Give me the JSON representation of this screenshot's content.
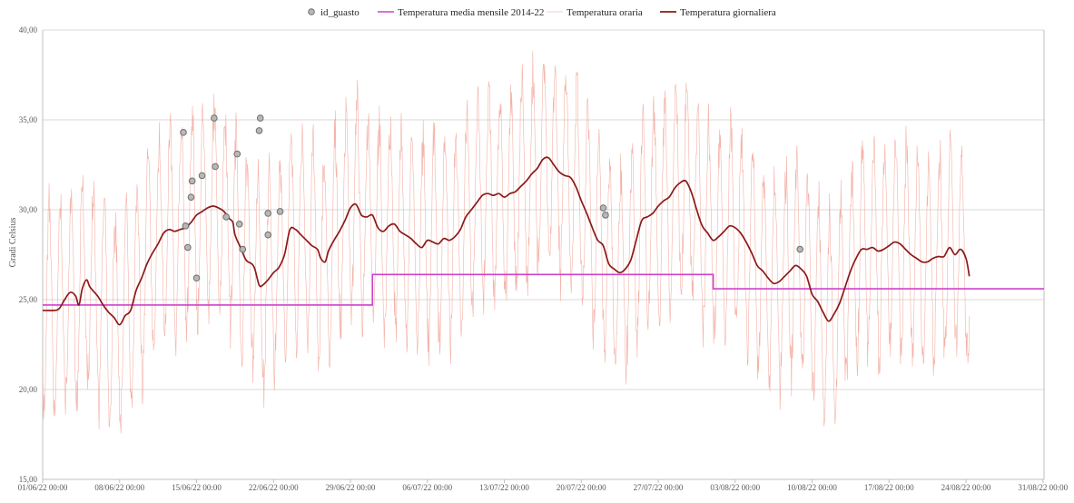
{
  "chart_data": {
    "type": "line",
    "ylabel": "Gradi Celsius",
    "ylim": [
      15,
      40
    ],
    "y_ticks": [
      "15,00",
      "20,00",
      "25,00",
      "30,00",
      "35,00",
      "40,00"
    ],
    "x_ticks": [
      "01/06/22 00:00",
      "08/06/22 00:00",
      "15/06/22 00:00",
      "22/06/22 00:00",
      "29/06/22 00:00",
      "06/07/22 00:00",
      "13/07/22 00:00",
      "20/07/22 00:00",
      "27/07/22 00:00",
      "03/08/22 00:00",
      "10/08/22 00:00",
      "17/08/22 00:00",
      "24/08/22 00:00",
      "31/08/22 00:00"
    ],
    "x_range_days": [
      0,
      91.1
    ],
    "grid": true,
    "legend_position": "top",
    "legend": [
      "id_guasto",
      "Temperatura media mensile 2014-22",
      "Temperatura oraria",
      "Temperatura giornaliera"
    ],
    "colors": {
      "id_guasto_fill": "#b8b8b8",
      "id_guasto_stroke": "#6e6e6e",
      "monthly": "#cc44cc",
      "hourly": "#f2a89c",
      "daily": "#8b1a1a",
      "grid": "#d9d9d9",
      "axis": "#bfbfbf"
    },
    "series": [
      {
        "name": "Temperatura media mensile 2014-22",
        "type": "step",
        "points": [
          [
            0,
            24.7
          ],
          [
            30,
            24.7
          ],
          [
            30,
            26.4
          ],
          [
            61,
            26.4
          ],
          [
            61,
            25.6
          ],
          [
            91.1,
            25.6
          ]
        ]
      },
      {
        "name": "Temperatura giornaliera",
        "type": "line",
        "points": [
          [
            0,
            24.4
          ],
          [
            1,
            24.4
          ],
          [
            1.5,
            24.5
          ],
          [
            2,
            25.0
          ],
          [
            2.5,
            25.4
          ],
          [
            3,
            25.2
          ],
          [
            3.3,
            24.7
          ],
          [
            3.6,
            25.6
          ],
          [
            4,
            26.1
          ],
          [
            4.3,
            25.7
          ],
          [
            5,
            25.2
          ],
          [
            5.5,
            24.7
          ],
          [
            6,
            24.3
          ],
          [
            6.5,
            24.0
          ],
          [
            7,
            23.6
          ],
          [
            7.5,
            24.1
          ],
          [
            8,
            24.4
          ],
          [
            8.5,
            25.5
          ],
          [
            9,
            26.2
          ],
          [
            9.5,
            27.0
          ],
          [
            10,
            27.6
          ],
          [
            10.5,
            28.1
          ],
          [
            11,
            28.7
          ],
          [
            11.5,
            28.9
          ],
          [
            12,
            28.8
          ],
          [
            12.5,
            28.9
          ],
          [
            13,
            29.0
          ],
          [
            13.5,
            29.3
          ],
          [
            14,
            29.7
          ],
          [
            14.5,
            29.9
          ],
          [
            15,
            30.1
          ],
          [
            15.5,
            30.2
          ],
          [
            16,
            30.1
          ],
          [
            16.5,
            29.9
          ],
          [
            17,
            29.5
          ],
          [
            17.3,
            29.3
          ],
          [
            17.5,
            28.6
          ],
          [
            18,
            27.9
          ],
          [
            18.5,
            27.2
          ],
          [
            19,
            27.0
          ],
          [
            19.3,
            26.7
          ],
          [
            19.7,
            25.8
          ],
          [
            20,
            25.8
          ],
          [
            20.5,
            26.1
          ],
          [
            21,
            26.5
          ],
          [
            21.5,
            26.8
          ],
          [
            22,
            27.5
          ],
          [
            22.5,
            28.9
          ],
          [
            23,
            28.9
          ],
          [
            23.5,
            28.6
          ],
          [
            24,
            28.3
          ],
          [
            24.5,
            28.0
          ],
          [
            25,
            27.8
          ],
          [
            25.3,
            27.3
          ],
          [
            25.7,
            27.1
          ],
          [
            26,
            27.7
          ],
          [
            26.5,
            28.3
          ],
          [
            27,
            28.8
          ],
          [
            27.5,
            29.4
          ],
          [
            28,
            30.1
          ],
          [
            28.5,
            30.3
          ],
          [
            29,
            29.7
          ],
          [
            29.5,
            29.6
          ],
          [
            30,
            29.7
          ],
          [
            30.5,
            29.0
          ],
          [
            31,
            28.8
          ],
          [
            31.5,
            29.1
          ],
          [
            32,
            29.2
          ],
          [
            32.5,
            28.8
          ],
          [
            33,
            28.6
          ],
          [
            33.5,
            28.4
          ],
          [
            34,
            28.1
          ],
          [
            34.5,
            27.9
          ],
          [
            35,
            28.3
          ],
          [
            35.5,
            28.2
          ],
          [
            36,
            28.1
          ],
          [
            36.5,
            28.4
          ],
          [
            37,
            28.3
          ],
          [
            37.5,
            28.5
          ],
          [
            38,
            28.9
          ],
          [
            38.5,
            29.6
          ],
          [
            39,
            30.0
          ],
          [
            39.5,
            30.4
          ],
          [
            40,
            30.8
          ],
          [
            40.5,
            30.9
          ],
          [
            41,
            30.8
          ],
          [
            41.5,
            30.9
          ],
          [
            42,
            30.7
          ],
          [
            42.5,
            30.9
          ],
          [
            43,
            31.0
          ],
          [
            43.5,
            31.3
          ],
          [
            44,
            31.6
          ],
          [
            44.5,
            32.0
          ],
          [
            45,
            32.3
          ],
          [
            45.5,
            32.8
          ],
          [
            46,
            32.9
          ],
          [
            46.5,
            32.5
          ],
          [
            47,
            32.1
          ],
          [
            47.5,
            31.9
          ],
          [
            48,
            31.8
          ],
          [
            48.5,
            31.3
          ],
          [
            49,
            30.5
          ],
          [
            49.5,
            29.8
          ],
          [
            50,
            29.0
          ],
          [
            50.5,
            28.3
          ],
          [
            51,
            28.0
          ],
          [
            51.5,
            27.0
          ],
          [
            52,
            26.7
          ],
          [
            52.5,
            26.5
          ],
          [
            53,
            26.7
          ],
          [
            53.5,
            27.2
          ],
          [
            54,
            28.3
          ],
          [
            54.5,
            29.4
          ],
          [
            55,
            29.6
          ],
          [
            55.5,
            29.8
          ],
          [
            56,
            30.2
          ],
          [
            56.5,
            30.5
          ],
          [
            57,
            30.7
          ],
          [
            57.5,
            31.2
          ],
          [
            58,
            31.5
          ],
          [
            58.5,
            31.6
          ],
          [
            59,
            31.0
          ],
          [
            59.5,
            30.0
          ],
          [
            60,
            29.1
          ],
          [
            60.5,
            28.7
          ],
          [
            61,
            28.3
          ],
          [
            61.5,
            28.5
          ],
          [
            62,
            28.8
          ],
          [
            62.5,
            29.1
          ],
          [
            63,
            29.0
          ],
          [
            63.5,
            28.7
          ],
          [
            64,
            28.2
          ],
          [
            64.5,
            27.6
          ],
          [
            65,
            26.9
          ],
          [
            65.5,
            26.6
          ],
          [
            66,
            26.2
          ],
          [
            66.5,
            25.9
          ],
          [
            67,
            26.0
          ],
          [
            67.5,
            26.3
          ],
          [
            68,
            26.6
          ],
          [
            68.5,
            26.9
          ],
          [
            69,
            26.7
          ],
          [
            69.5,
            26.3
          ],
          [
            70,
            25.3
          ],
          [
            70.5,
            24.9
          ],
          [
            71,
            24.3
          ],
          [
            71.5,
            23.8
          ],
          [
            72,
            24.2
          ],
          [
            72.5,
            24.8
          ],
          [
            73,
            25.7
          ],
          [
            73.5,
            26.6
          ],
          [
            74,
            27.3
          ],
          [
            74.5,
            27.8
          ],
          [
            75,
            27.8
          ],
          [
            75.5,
            27.9
          ],
          [
            76,
            27.7
          ],
          [
            76.5,
            27.8
          ],
          [
            77,
            28.0
          ],
          [
            77.5,
            28.2
          ],
          [
            78,
            28.1
          ],
          [
            78.5,
            27.8
          ],
          [
            79,
            27.5
          ],
          [
            79.5,
            27.3
          ],
          [
            80,
            27.1
          ],
          [
            80.5,
            27.1
          ],
          [
            81,
            27.3
          ],
          [
            81.5,
            27.4
          ],
          [
            82,
            27.4
          ],
          [
            82.5,
            27.9
          ],
          [
            83,
            27.5
          ],
          [
            83.5,
            27.8
          ],
          [
            84,
            27.3
          ],
          [
            84.3,
            26.3
          ]
        ]
      },
      {
        "name": "id_guasto",
        "type": "scatter",
        "points": [
          [
            12.8,
            34.3
          ],
          [
            13.0,
            29.1
          ],
          [
            13.2,
            27.9
          ],
          [
            13.5,
            30.7
          ],
          [
            13.6,
            31.6
          ],
          [
            14.0,
            26.2
          ],
          [
            14.5,
            31.9
          ],
          [
            15.6,
            35.1
          ],
          [
            15.7,
            32.4
          ],
          [
            16.7,
            29.6
          ],
          [
            17.7,
            33.1
          ],
          [
            17.9,
            29.2
          ],
          [
            18.2,
            27.8
          ],
          [
            19.7,
            34.4
          ],
          [
            19.8,
            35.1
          ],
          [
            20.5,
            29.8
          ],
          [
            20.5,
            28.6
          ],
          [
            21.6,
            29.9
          ],
          [
            51.0,
            30.1
          ],
          [
            51.2,
            29.7
          ],
          [
            68.9,
            27.8
          ]
        ]
      },
      {
        "name": "Temperatura oraria",
        "type": "line",
        "generated_hourly": true,
        "amplitude_c": 5.5
      }
    ]
  }
}
